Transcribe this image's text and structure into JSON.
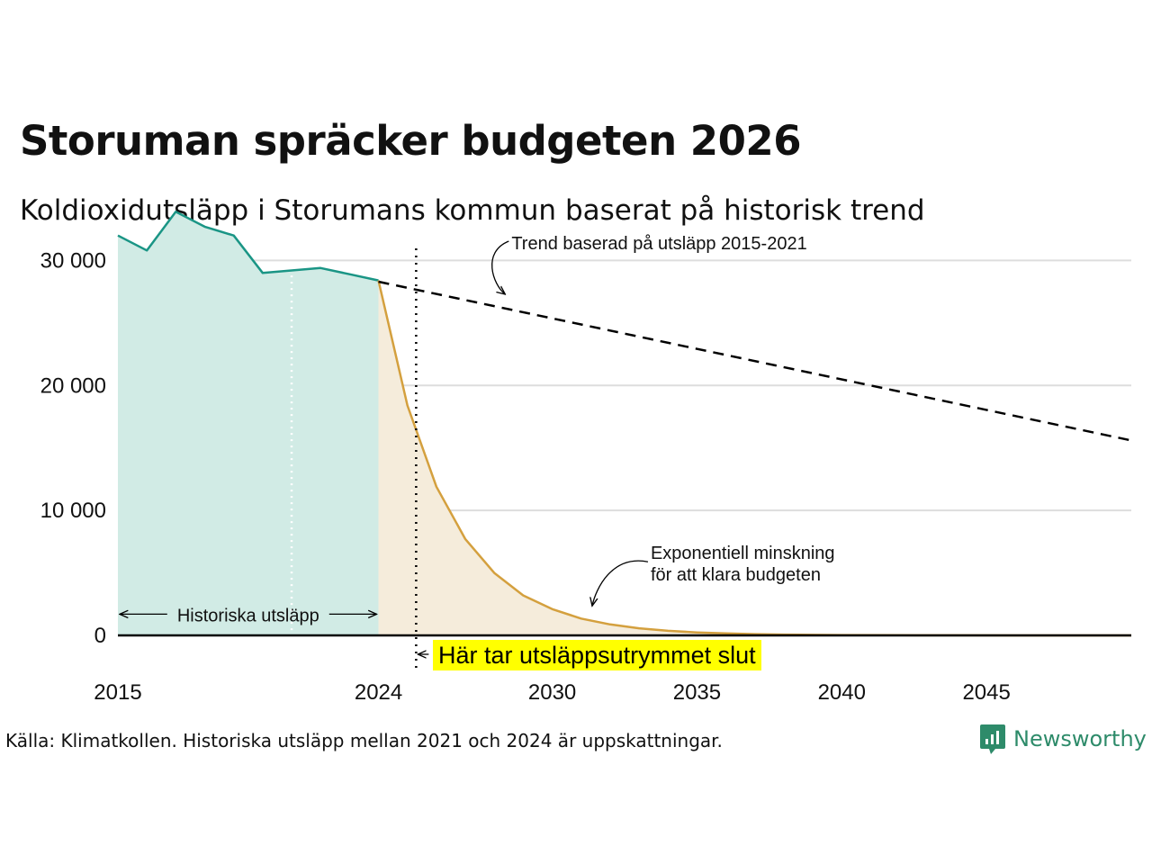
{
  "title": "Storuman spräcker budgeten 2026",
  "subtitle": "Koldioxidutsläpp i Storumans kommun baserat på historisk trend",
  "source": "Källa: Klimatkollen. Historiska utsläpp mellan 2021 och 2024 är uppskattningar.",
  "logo": {
    "text": "Newsworthy"
  },
  "colors": {
    "historical_line": "#1a9585",
    "historical_fill": "#d1ebe5",
    "reduction_line": "#d4a03e",
    "reduction_fill": "#f5ecdb",
    "trend_line": "#000000",
    "gridline": "#dddddd",
    "highlight": "#ffff00",
    "logo": "#2e8b6a"
  },
  "chart_data": {
    "type": "area",
    "title": "Storuman spräcker budgeten 2026",
    "xlabel": "",
    "ylabel": "",
    "xlim": [
      2015,
      2050
    ],
    "ylim": [
      0,
      35000
    ],
    "grid": true,
    "y_ticks": [
      0,
      10000,
      20000,
      30000
    ],
    "y_tick_labels": [
      "0",
      "10 000",
      "20 000",
      "30 000"
    ],
    "x_ticks": [
      2015,
      2024,
      2030,
      2035,
      2040,
      2045
    ],
    "x_tick_labels": [
      "2015",
      "2024",
      "2030",
      "2035",
      "2040",
      "2045"
    ],
    "series": [
      {
        "name": "Historiska utsläpp",
        "style": "area",
        "x": [
          2015,
          2016,
          2017,
          2018,
          2019,
          2020,
          2021,
          2022,
          2023,
          2024
        ],
        "y": [
          32000,
          30800,
          33900,
          32700,
          32000,
          29000,
          29200,
          29400,
          28900,
          28400
        ]
      },
      {
        "name": "Exponentiell minskning för att klara budgeten",
        "style": "area",
        "x": [
          2024,
          2025,
          2026,
          2027,
          2028,
          2029,
          2030,
          2031,
          2032,
          2033,
          2034,
          2035,
          2036,
          2037,
          2038,
          2039,
          2040,
          2042,
          2044,
          2046,
          2048,
          2050
        ],
        "y": [
          28400,
          18400,
          11900,
          7700,
          5000,
          3200,
          2100,
          1350,
          880,
          570,
          370,
          240,
          155,
          100,
          65,
          42,
          27,
          12,
          5,
          2,
          1,
          0
        ]
      },
      {
        "name": "Trend baserad på utsläpp 2015-2021",
        "style": "dashed",
        "x": [
          2024,
          2050
        ],
        "y": [
          28300,
          15600
        ]
      }
    ],
    "annotations": [
      {
        "text": "Trend baserad på utsläpp 2015-2021",
        "x": 2028.5,
        "y": 31400
      },
      {
        "text_lines": [
          "Exponentiell minskning",
          "för att klara budgeten"
        ],
        "x": 2033.4,
        "y": 5600
      },
      {
        "text": "Historiska utsläpp",
        "x_range": [
          2015,
          2024
        ],
        "y": 1700
      },
      {
        "text": "Här tar utsläppsutrymmet slut",
        "x": 2025.3
      }
    ],
    "vertical_markers": [
      {
        "label": "Här tar utsläppsutrymmet slut",
        "x": 2025.3,
        "style": "dotted"
      },
      {
        "x": 2021,
        "style": "dotted-white"
      }
    ]
  }
}
